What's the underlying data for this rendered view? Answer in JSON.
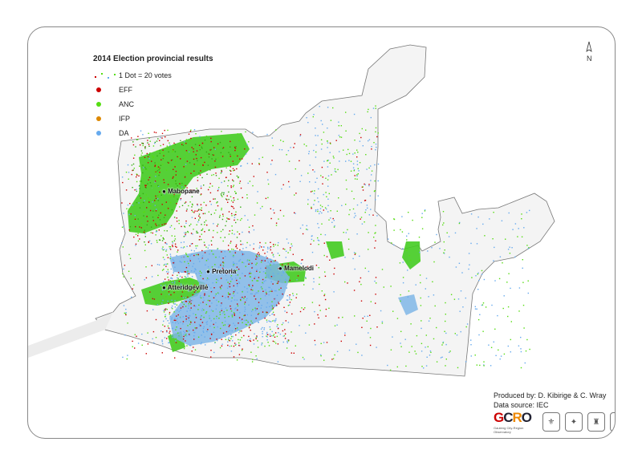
{
  "legend": {
    "title": "2014 Election provincial results",
    "dot_label": "1 Dot = 20 votes",
    "items": [
      {
        "label": "EFF",
        "color": "#cc0000"
      },
      {
        "label": "ANC",
        "color": "#55dd11"
      },
      {
        "label": "IFP",
        "color": "#dd8800"
      },
      {
        "label": "DA",
        "color": "#66aaee"
      }
    ]
  },
  "north_label": "N",
  "places": [
    {
      "name": "Mabopane"
    },
    {
      "name": "Pretoria"
    },
    {
      "name": "Mamelodi"
    },
    {
      "name": "Atteridgeville"
    }
  ],
  "credits": {
    "produced_by": "Produced by: D. Kibirige & C. Wray",
    "source": "Data source: IEC"
  },
  "logos": {
    "gcro": "GCRO",
    "gcro_sub": "Gauteng City-Region Observatory"
  },
  "colors": {
    "municipality_fill": "#f4f4f4",
    "municipality_stroke": "#777777",
    "anc_area": "#44cc22",
    "da_area": "#7fb6e6"
  }
}
